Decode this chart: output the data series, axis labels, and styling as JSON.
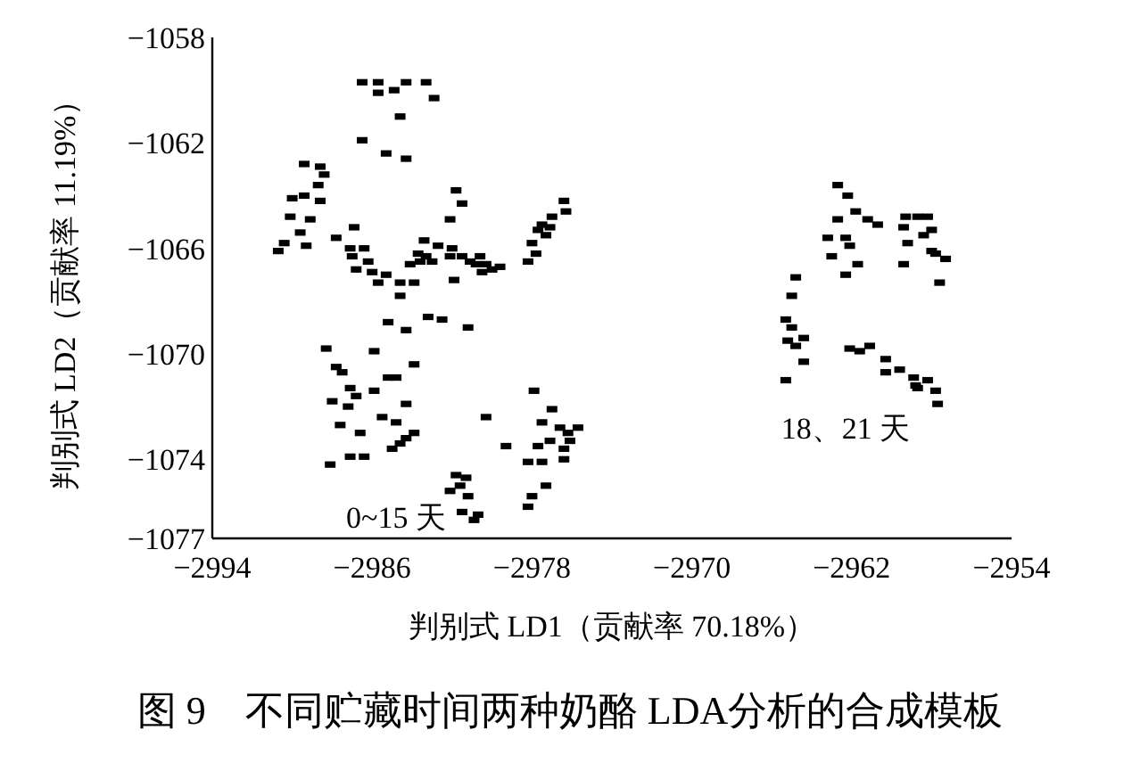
{
  "chart_data": {
    "type": "scatter",
    "title": "图 9　不同贮藏时间两种奶酪 LDA分析的合成模板",
    "xlabel": "判别式 LD1（贡献率 70.18%）",
    "ylabel": "判别式 LD2（贡献率 11.19%）",
    "xlim": [
      -2994,
      -2954
    ],
    "xticks": [
      -2994,
      -2986,
      -2978,
      -2970,
      -2962,
      -2954
    ],
    "ylim": [
      -1077,
      -1058
    ],
    "yticks": [
      -1077,
      -1074,
      -1070,
      -1066,
      -1062,
      -1058
    ],
    "grid": false,
    "marker": "square",
    "annotations": [
      "0~15 天",
      "18、21 天"
    ],
    "series": [
      {
        "color": "#000000",
        "x": [
          -2986.5,
          -2985.7,
          -2984.9,
          -2984.3,
          -2983.3,
          -2982.9,
          -2984.6,
          -2986.5,
          -2985.3,
          -2984.3,
          -2985.7,
          -2989.4,
          -2988.6,
          -2988.4,
          -2988.7,
          -2989.4,
          -2990.0,
          -2988.6,
          -2990.1,
          -2989.1,
          -2989.6,
          -2990.4,
          -2989.3,
          -2990.7,
          -2986.9,
          -2987.8,
          -2987.1,
          -2986.4,
          -2987.0,
          -2986.2,
          -2986.8,
          -2986.0,
          -2985.3,
          -2984.6,
          -2985.7,
          -2981.8,
          -2981.5,
          -2982.1,
          -2983.4,
          -2983.7,
          -2983.6,
          -2984.1,
          -2983.3,
          -2983.0,
          -2982.7,
          -2983.9,
          -2984.6,
          -2982.1,
          -2981.5,
          -2981.1,
          -2980.8,
          -2980.3,
          -2980.0,
          -2979.6,
          -2980.6,
          -2982.0,
          -2980.5,
          -2981.9,
          -2983.2,
          -2981.2,
          -2985.2,
          -2984.3,
          -2985.9,
          -2983.9,
          -2984.8,
          -2982.5,
          -2976.4,
          -2976.3,
          -2977.0,
          -2977.5,
          -2977.1,
          -2977.7,
          -2977.3,
          -2978.0,
          -2977.8,
          -2978.2,
          -2988.3,
          -2987.8,
          -2987.5,
          -2987.1,
          -2988.0,
          -2987.2,
          -2986.8,
          -2987.6,
          -2987.1,
          -2986.4,
          -2988.1,
          -2986.6,
          -2985.2,
          -2985.9,
          -2984.3,
          -2985.5,
          -2984.8,
          -2983.9,
          -2984.3,
          -2984.6,
          -2985.0,
          -2981.8,
          -2981.3,
          -2981.6,
          -2982.1,
          -2981.2,
          -2981.5,
          -2980.9,
          -2980.7,
          -2977.9,
          -2977.0,
          -2980.3,
          -2975.7,
          -2977.5,
          -2976.6,
          -2976.2,
          -2976.1,
          -2976.4,
          -2977.1,
          -2977.7,
          -2979.3,
          -2978.2,
          -2977.5,
          -2977.3,
          -2976.4,
          -2978.0,
          -2978.2,
          -2964.8,
          -2965.0,
          -2965.3,
          -2965.0,
          -2964.4,
          -2965.2,
          -2964.8,
          -2964.4,
          -2965.3,
          -2962.7,
          -2962.2,
          -2961.8,
          -2962.7,
          -2961.2,
          -2960.7,
          -2963.2,
          -2962.3,
          -2962.1,
          -2963.0,
          -2961.7,
          -2962.3,
          -2959.3,
          -2958.7,
          -2958.2,
          -2959.4,
          -2958.0,
          -2958.4,
          -2959.2,
          -2958.0,
          -2957.8,
          -2957.3,
          -2957.6,
          -2959.4,
          -2962.1,
          -2961.6,
          -2961.1,
          -2960.3,
          -2960.3,
          -2959.6,
          -2958.9,
          -2958.7,
          -2958.2,
          -2957.8,
          -2957.7,
          -2958.8
        ],
        "values": [
          -1059.7,
          -1059.7,
          -1060.0,
          -1059.7,
          -1059.7,
          -1060.3,
          -1061.0,
          -1061.9,
          -1062.4,
          -1062.6,
          -1060.1,
          -1062.8,
          -1062.9,
          -1063.2,
          -1063.6,
          -1064.0,
          -1064.1,
          -1064.2,
          -1064.8,
          -1064.9,
          -1065.4,
          -1065.8,
          -1065.9,
          -1066.1,
          -1065.2,
          -1065.6,
          -1066.0,
          -1066.0,
          -1066.3,
          -1066.5,
          -1066.8,
          -1066.9,
          -1067.0,
          -1067.3,
          -1067.3,
          -1063.8,
          -1064.3,
          -1064.9,
          -1065.7,
          -1066.2,
          -1066.5,
          -1066.6,
          -1066.3,
          -1066.5,
          -1065.9,
          -1067.3,
          -1067.8,
          -1066.3,
          -1066.3,
          -1066.5,
          -1066.6,
          -1066.6,
          -1066.8,
          -1066.7,
          -1066.3,
          -1066.0,
          -1066.9,
          -1067.2,
          -1068.6,
          -1069.0,
          -1068.8,
          -1069.1,
          -1069.9,
          -1070.4,
          -1070.9,
          -1068.7,
          -1064.2,
          -1064.6,
          -1064.8,
          -1065.1,
          -1065.2,
          -1065.3,
          -1065.5,
          -1065.8,
          -1066.2,
          -1066.5,
          -1069.8,
          -1070.5,
          -1070.7,
          -1071.3,
          -1071.8,
          -1072.0,
          -1071.6,
          -1072.7,
          -1073.9,
          -1073.9,
          -1074.2,
          -1073.0,
          -1070.9,
          -1071.4,
          -1071.9,
          -1072.4,
          -1072.6,
          -1073.0,
          -1073.2,
          -1073.4,
          -1073.6,
          -1074.6,
          -1074.7,
          -1075.0,
          -1075.2,
          -1075.4,
          -1076.0,
          -1076.3,
          -1076.1,
          -1071.4,
          -1072.1,
          -1072.4,
          -1072.8,
          -1072.6,
          -1072.8,
          -1073.0,
          -1073.3,
          -1073.6,
          -1073.3,
          -1073.5,
          -1073.5,
          -1074.1,
          -1074.1,
          -1075.0,
          -1074.0,
          -1075.4,
          -1075.8,
          -1067.1,
          -1067.8,
          -1068.7,
          -1069.0,
          -1069.4,
          -1069.5,
          -1069.7,
          -1070.3,
          -1071.0,
          -1063.6,
          -1064.0,
          -1064.6,
          -1064.9,
          -1064.9,
          -1065.1,
          -1065.6,
          -1065.6,
          -1065.9,
          -1066.3,
          -1066.6,
          -1067.0,
          -1064.8,
          -1064.8,
          -1064.8,
          -1065.2,
          -1065.3,
          -1065.5,
          -1065.8,
          -1066.1,
          -1066.2,
          -1066.4,
          -1067.3,
          -1066.6,
          -1069.8,
          -1069.9,
          -1069.7,
          -1070.2,
          -1070.7,
          -1070.6,
          -1070.9,
          -1071.3,
          -1071.0,
          -1071.4,
          -1071.9,
          -1071.2
        ]
      }
    ]
  }
}
